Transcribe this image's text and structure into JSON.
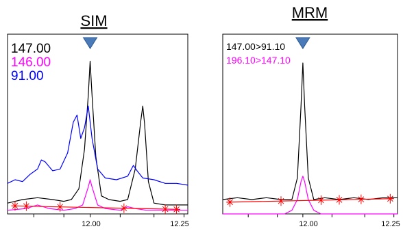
{
  "chart_data": [
    {
      "type": "line",
      "title": "SIM",
      "xlim": [
        11.78,
        12.26
      ],
      "ylim": [
        0,
        1
      ],
      "x_ticks": [
        11.85,
        11.93,
        12.0,
        12.08,
        12.17,
        12.25
      ],
      "x_tick_labels": [
        "",
        "",
        "12.00",
        "",
        "",
        "12.25"
      ],
      "x_tick_label_text": {
        "t12": "12.00",
        "t1225": "12.25"
      },
      "grid": false,
      "marker": "triangle",
      "marker_x": 12.0,
      "series": [
        {
          "name": "147.00",
          "color": "#000000",
          "x": [
            11.78,
            11.82,
            11.86,
            11.9,
            11.93,
            11.95,
            11.97,
            11.985,
            11.995,
            12.0,
            12.005,
            12.015,
            12.03,
            12.05,
            12.08,
            12.1,
            12.12,
            12.135,
            12.14,
            12.145,
            12.155,
            12.17,
            12.2,
            12.23,
            12.26
          ],
          "y": [
            0.06,
            0.08,
            0.09,
            0.08,
            0.07,
            0.08,
            0.14,
            0.36,
            0.66,
            0.85,
            0.66,
            0.32,
            0.1,
            0.08,
            0.07,
            0.08,
            0.25,
            0.52,
            0.6,
            0.5,
            0.18,
            0.06,
            0.05,
            0.05,
            0.05
          ]
        },
        {
          "name": "146.00",
          "color": "#ff00ff",
          "x": [
            11.78,
            11.83,
            11.86,
            11.89,
            11.93,
            11.96,
            11.98,
            11.995,
            12.0,
            12.005,
            12.02,
            12.04,
            12.08,
            12.1,
            12.12,
            12.15,
            12.2,
            12.26
          ],
          "y": [
            0.02,
            0.03,
            0.05,
            0.03,
            0.02,
            0.03,
            0.05,
            0.15,
            0.19,
            0.15,
            0.05,
            0.03,
            0.02,
            0.04,
            0.03,
            0.02,
            0.02,
            0.02
          ]
        },
        {
          "name": "91.00",
          "color": "#0000ff",
          "x": [
            11.78,
            11.8,
            11.82,
            11.84,
            11.86,
            11.87,
            11.88,
            11.9,
            11.92,
            11.94,
            11.955,
            11.965,
            11.975,
            11.985,
            11.995,
            12.005,
            12.02,
            12.04,
            12.07,
            12.1,
            12.115,
            12.125,
            12.14,
            12.17,
            12.2,
            12.23,
            12.26
          ],
          "y": [
            0.17,
            0.19,
            0.18,
            0.22,
            0.25,
            0.3,
            0.29,
            0.24,
            0.25,
            0.34,
            0.51,
            0.55,
            0.42,
            0.48,
            0.6,
            0.42,
            0.25,
            0.2,
            0.19,
            0.21,
            0.27,
            0.24,
            0.2,
            0.19,
            0.17,
            0.17,
            0.16
          ]
        },
        {
          "name": "baseline",
          "color": "#ff0000",
          "x": [
            11.79,
            12.24
          ],
          "y": [
            0.045,
            0.025
          ],
          "markers_x": [
            11.8,
            11.83,
            11.92,
            12.09,
            12.2,
            12.23
          ]
        }
      ]
    },
    {
      "type": "line",
      "title": "MRM",
      "xlim": [
        11.78,
        12.26
      ],
      "ylim": [
        0,
        1
      ],
      "x_ticks": [
        11.85,
        11.93,
        12.0,
        12.08,
        12.17,
        12.25
      ],
      "x_tick_labels": [
        "",
        "",
        "12.00",
        "",
        "",
        "12.25"
      ],
      "x_tick_label_text": {
        "t12": "12.00",
        "t1225": "12.25"
      },
      "grid": false,
      "marker": "triangle",
      "marker_x": 12.0,
      "series": [
        {
          "name": "147.00>91.10",
          "color": "#000000",
          "x": [
            11.78,
            11.82,
            11.86,
            11.9,
            11.94,
            11.97,
            11.985,
            11.995,
            12.0,
            12.005,
            12.015,
            12.03,
            12.06,
            12.1,
            12.14,
            12.18,
            12.22,
            12.26
          ],
          "y": [
            0.08,
            0.09,
            0.08,
            0.09,
            0.08,
            0.08,
            0.2,
            0.6,
            0.84,
            0.6,
            0.2,
            0.08,
            0.09,
            0.08,
            0.09,
            0.08,
            0.09,
            0.09
          ]
        },
        {
          "name": "196.10>147.10",
          "color": "#ff00ff",
          "x": [
            11.78,
            11.95,
            11.97,
            11.985,
            11.995,
            12.0,
            12.005,
            12.015,
            12.03,
            12.05,
            12.26
          ],
          "y": [
            0.0,
            0.0,
            0.02,
            0.08,
            0.18,
            0.21,
            0.18,
            0.08,
            0.02,
            0.0,
            0.0
          ]
        },
        {
          "name": "baseline",
          "color": "#ff0000",
          "x": [
            11.79,
            12.25
          ],
          "y": [
            0.065,
            0.085
          ],
          "markers_x": [
            11.8,
            11.94,
            12.05,
            12.1,
            12.16,
            12.24
          ]
        }
      ]
    }
  ]
}
